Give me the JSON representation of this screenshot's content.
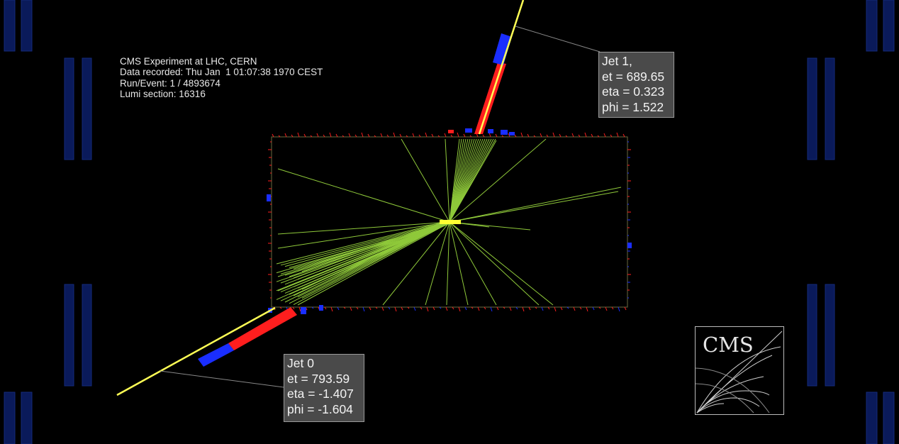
{
  "info": {
    "line1": "CMS Experiment at LHC, CERN",
    "line2": "Data recorded: Thu Jan  1 01:07:38 1970 CEST",
    "line3": "Run/Event: 1 / 4893674",
    "line4": "Lumi section: 16316"
  },
  "jets": [
    {
      "title": "Jet 0",
      "et": "et = 793.59",
      "eta": "eta = -1.407",
      "phi": "phi = -1.604"
    },
    {
      "title": "Jet 1,",
      "et": "et = 689.65",
      "eta": "eta = 0.323",
      "phi": "phi = 1.522"
    }
  ],
  "logo": {
    "text": "CMS"
  },
  "colors": {
    "background": "#000000",
    "track": "#8fc93a",
    "jet_axis": "#ffff55",
    "ecal": "#ff1e1e",
    "hcal": "#1a2eff",
    "muon_chamber": "#0a1a5a",
    "label_box": "#4a4a4a"
  }
}
